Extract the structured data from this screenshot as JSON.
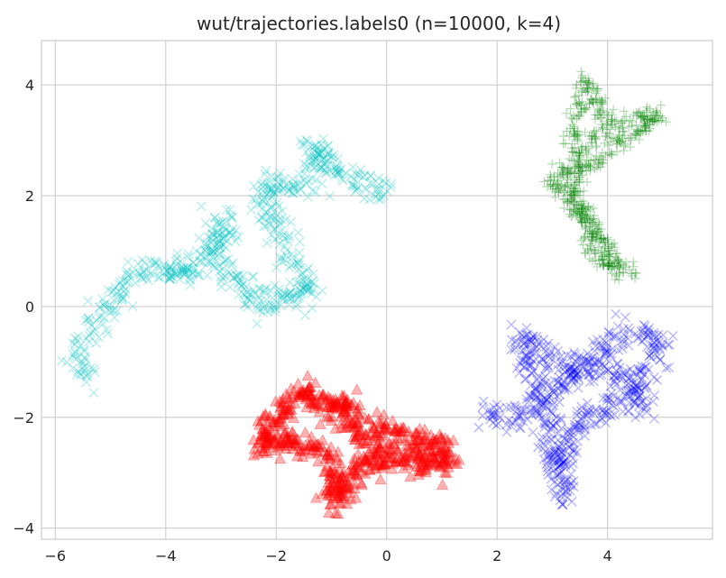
{
  "chart_data": {
    "type": "scatter",
    "title": "wut/trajectories.labels0 (n=10000, k=4)",
    "xlabel": "",
    "ylabel": "",
    "xlim": [
      -6.25,
      5.9
    ],
    "ylim": [
      -4.2,
      4.8
    ],
    "x_ticks": [
      -6,
      -4,
      -2,
      0,
      2,
      4
    ],
    "y_ticks": [
      -4,
      -2,
      0,
      2,
      4
    ],
    "grid": true,
    "legend": "none",
    "series": [
      {
        "color": "#00bfbf",
        "marker": "x",
        "path": [
          [
            -5.4,
            -1.3
          ],
          [
            -5.6,
            -1.0
          ],
          [
            -5.5,
            -0.6
          ],
          [
            -5.3,
            -0.2
          ],
          [
            -5.0,
            0.0
          ],
          [
            -4.8,
            0.3
          ],
          [
            -4.6,
            0.6
          ],
          [
            -4.3,
            0.7
          ],
          [
            -4.0,
            0.6
          ],
          [
            -3.7,
            0.7
          ],
          [
            -3.5,
            0.6
          ],
          [
            -3.3,
            0.9
          ],
          [
            -3.1,
            1.1
          ],
          [
            -3.0,
            1.4
          ],
          [
            -2.85,
            1.6
          ],
          [
            -3.1,
            0.8
          ],
          [
            -2.9,
            0.6
          ],
          [
            -2.6,
            0.4
          ],
          [
            -2.4,
            0.1
          ],
          [
            -2.2,
            0.0
          ],
          [
            -1.9,
            0.3
          ],
          [
            -1.6,
            0.1
          ],
          [
            -1.4,
            0.3
          ],
          [
            -1.7,
            0.7
          ],
          [
            -1.9,
            1.2
          ],
          [
            -2.1,
            1.6
          ],
          [
            -2.3,
            2.0
          ],
          [
            -1.9,
            2.3
          ],
          [
            -1.6,
            2.1
          ],
          [
            -1.3,
            2.4
          ],
          [
            -1.1,
            2.7
          ],
          [
            -1.4,
            2.9
          ],
          [
            -1.1,
            2.6
          ],
          [
            -0.7,
            2.3
          ],
          [
            -0.4,
            2.2
          ],
          [
            -0.1,
            2.1
          ],
          [
            0.0,
            2.0
          ]
        ],
        "center": [
          -1.3,
          0.9
        ],
        "spread": 0.12,
        "count": 2500
      },
      {
        "color": "#008000",
        "marker": "+",
        "path": [
          [
            3.3,
            3.0
          ],
          [
            3.5,
            3.6
          ],
          [
            3.6,
            4.1
          ],
          [
            3.8,
            3.8
          ],
          [
            4.0,
            3.3
          ],
          [
            4.3,
            3.3
          ],
          [
            4.6,
            3.4
          ],
          [
            4.9,
            3.5
          ],
          [
            4.6,
            3.1
          ],
          [
            4.2,
            3.0
          ],
          [
            3.8,
            2.6
          ],
          [
            3.5,
            2.4
          ],
          [
            3.2,
            2.5
          ],
          [
            3.0,
            2.2
          ],
          [
            3.3,
            1.9
          ],
          [
            3.6,
            1.7
          ],
          [
            3.8,
            1.3
          ],
          [
            4.0,
            1.0
          ],
          [
            4.2,
            0.7
          ],
          [
            4.4,
            0.6
          ],
          [
            3.8,
            0.9
          ],
          [
            3.6,
            1.5
          ],
          [
            3.4,
            2.0
          ],
          [
            3.5,
            2.8
          ],
          [
            3.9,
            3.2
          ]
        ],
        "center": [
          3.9,
          2.4
        ],
        "spread": 0.09,
        "count": 2500
      },
      {
        "color": "#0000ff",
        "marker": "x",
        "path": [
          [
            1.7,
            -1.9
          ],
          [
            2.0,
            -2.0
          ],
          [
            2.3,
            -2.1
          ],
          [
            2.6,
            -1.9
          ],
          [
            2.9,
            -1.6
          ],
          [
            3.2,
            -1.4
          ],
          [
            3.5,
            -1.0
          ],
          [
            3.8,
            -0.8
          ],
          [
            4.1,
            -0.6
          ],
          [
            4.4,
            -0.5
          ],
          [
            4.7,
            -0.5
          ],
          [
            5.0,
            -0.7
          ],
          [
            4.8,
            -1.1
          ],
          [
            4.5,
            -1.4
          ],
          [
            4.2,
            -1.7
          ],
          [
            3.9,
            -1.9
          ],
          [
            3.6,
            -2.0
          ],
          [
            3.4,
            -2.3
          ],
          [
            3.2,
            -2.6
          ],
          [
            3.2,
            -3.0
          ],
          [
            3.2,
            -3.4
          ],
          [
            3.0,
            -2.5
          ],
          [
            2.9,
            -2.1
          ],
          [
            2.7,
            -1.3
          ],
          [
            2.5,
            -0.8
          ],
          [
            2.5,
            -0.5
          ],
          [
            3.3,
            -1.1
          ],
          [
            4.3,
            -1.2
          ],
          [
            4.7,
            -1.9
          ]
        ],
        "center": [
          3.6,
          -1.6
        ],
        "spread": 0.12,
        "count": 2500
      },
      {
        "color": "#ff0000",
        "marker": "^",
        "path": [
          [
            -2.3,
            -2.6
          ],
          [
            -2.1,
            -2.1
          ],
          [
            -1.8,
            -1.8
          ],
          [
            -1.5,
            -1.5
          ],
          [
            -1.2,
            -1.8
          ],
          [
            -0.9,
            -1.7
          ],
          [
            -0.6,
            -2.0
          ],
          [
            -0.4,
            -2.4
          ],
          [
            -0.1,
            -2.2
          ],
          [
            0.2,
            -2.3
          ],
          [
            0.5,
            -2.4
          ],
          [
            0.8,
            -2.5
          ],
          [
            1.0,
            -2.5
          ],
          [
            1.1,
            -2.8
          ],
          [
            0.8,
            -2.9
          ],
          [
            0.5,
            -2.7
          ],
          [
            0.2,
            -2.8
          ],
          [
            -0.2,
            -2.7
          ],
          [
            -0.5,
            -2.9
          ],
          [
            -0.8,
            -3.2
          ],
          [
            -0.9,
            -3.5
          ],
          [
            -1.0,
            -3.1
          ],
          [
            -1.1,
            -2.7
          ],
          [
            -1.4,
            -2.5
          ],
          [
            -1.7,
            -2.5
          ],
          [
            -2.0,
            -2.4
          ],
          [
            -2.2,
            -2.4
          ]
        ],
        "center": [
          -0.9,
          -2.4
        ],
        "spread": 0.12,
        "count": 2500
      }
    ]
  }
}
